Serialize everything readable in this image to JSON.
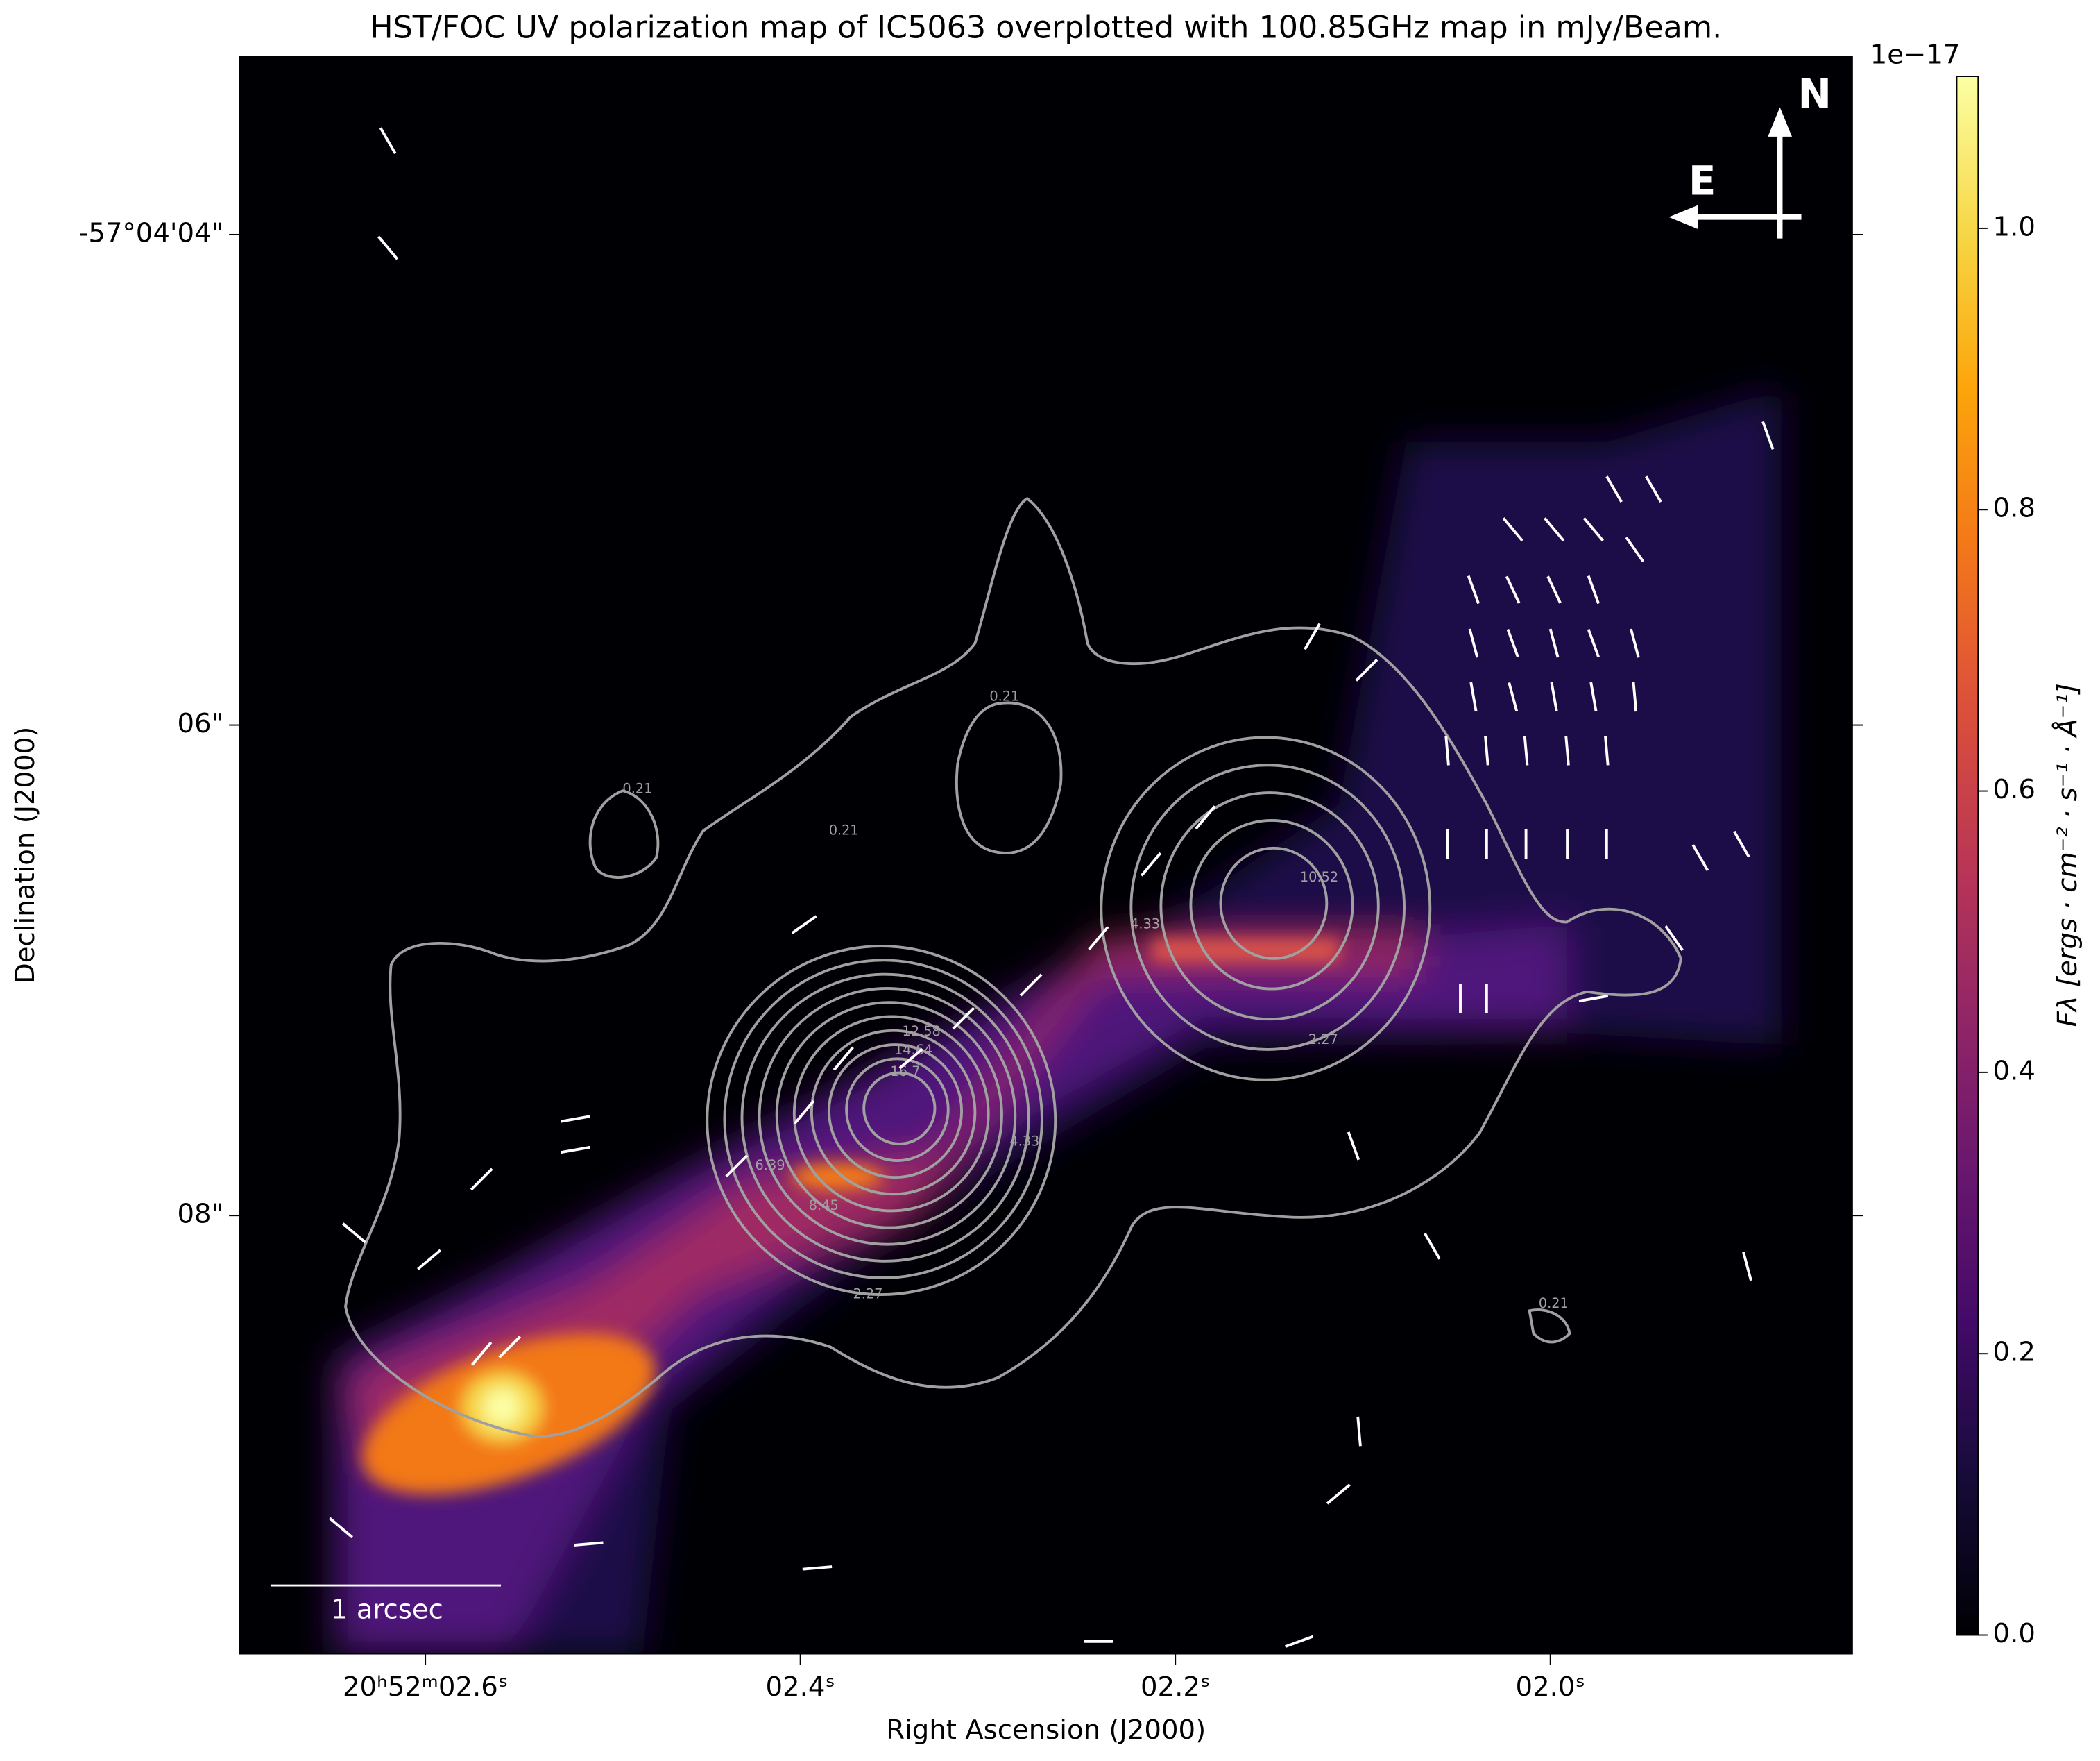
{
  "chart_data": {
    "type": "image",
    "title": "HST/FOC UV polarization map of IC5063 overplotted with 100.85GHz map in mJy/Beam.",
    "xlabel": "Right Ascension (J2000)",
    "ylabel": "Declination (J2000)",
    "xlim": [
      2.699,
      1.839
    ],
    "ylim": [
      9.787,
      3.273
    ],
    "xticks": [
      {
        "value": 2.6,
        "label": "20ʰ52ᵐ02.6ˢ"
      },
      {
        "value": 2.4,
        "label": "02.4ˢ"
      },
      {
        "value": 2.2,
        "label": "02.2ˢ"
      },
      {
        "value": 2.0,
        "label": "02.0ˢ"
      }
    ],
    "yticks": [
      {
        "value": 4,
        "label": "-57°04'04\""
      },
      {
        "value": 6,
        "label": "06\""
      },
      {
        "value": 8,
        "label": "08\""
      }
    ],
    "colorbar": {
      "label": "Fλ [ergs · cm⁻² · s⁻¹ · Å⁻¹]",
      "offset_text": "1e−17",
      "ylim": [
        0,
        1.108
      ],
      "ticks": [
        {
          "value": 0,
          "label": "0.0"
        },
        0.2,
        0.4,
        0.6,
        0.8,
        {
          "value": 1,
          "label": "1.0"
        }
      ]
    },
    "contours": {
      "color": "#a0a0a0",
      "levels": [
        0.21,
        2.27,
        4.33,
        6.39,
        8.45,
        10.52,
        12.58,
        14.64,
        16.7,
        18.76,
        20.82
      ]
    },
    "vectors": {
      "color": "#ffffff",
      "x": [
        2.62,
        2.62,
        1.884,
        1.966,
        1.945,
        2.02,
        1.998,
        1.977,
        1.955,
        2.041,
        2.02,
        1.998,
        1.977,
        2.041,
        2.02,
        1.998,
        1.977,
        1.955,
        2.041,
        2.02,
        1.998,
        1.977,
        1.955,
        2.055,
        2.034,
        2.013,
        1.991,
        1.97,
        2.055,
        2.034,
        2.013,
        1.991,
        1.97,
        1.92,
        1.898,
        1.934,
        2.048,
        2.034,
        1.977,
        2.184,
        2.213,
        2.241,
        2.277,
        2.313,
        2.341,
        2.377,
        2.398,
        2.434,
        2.57,
        2.598,
        2.638,
        2.57,
        2.555,
        2.52,
        2.52,
        2.398,
        2.098,
        2.127,
        2.063,
        1.895,
        2.102,
        2.113,
        2.391,
        2.241,
        2.134,
        2.645,
        2.513,
        2.105
      ],
      "y": [
        3.617,
        4.054,
        4.819,
        5.038,
        5.038,
        5.202,
        5.202,
        5.202,
        5.284,
        5.448,
        5.448,
        5.448,
        5.448,
        5.666,
        5.666,
        5.666,
        5.666,
        5.666,
        5.885,
        5.885,
        5.885,
        5.885,
        5.885,
        6.104,
        6.104,
        6.104,
        6.104,
        6.104,
        6.486,
        6.486,
        6.486,
        6.486,
        6.486,
        6.541,
        6.486,
        6.869,
        7.115,
        7.115,
        7.115,
        6.377,
        6.568,
        6.869,
        7.06,
        7.196,
        7.36,
        7.36,
        7.579,
        7.798,
        7.852,
        8.18,
        8.071,
        8.563,
        8.536,
        7.606,
        7.732,
        6.814,
        5.776,
        5.639,
        8.125,
        8.207,
        8.88,
        9.136,
        9.437,
        9.737,
        9.737,
        9.273,
        9.339,
        7.716
      ],
      "angle": [
        -30,
        -40,
        -20,
        -30,
        -30,
        -40,
        -40,
        -40,
        -35,
        -20,
        -25,
        -25,
        -20,
        -15,
        -20,
        -15,
        -20,
        -15,
        -10,
        -15,
        -10,
        -10,
        -5,
        -5,
        -5,
        -5,
        -5,
        -5,
        0,
        0,
        0,
        0,
        0,
        -30,
        -30,
        -35,
        0,
        0,
        80,
        40,
        40,
        40,
        45,
        45,
        50,
        40,
        40,
        45,
        45,
        50,
        -50,
        40,
        45,
        80,
        80,
        55,
        45,
        30,
        -30,
        -15,
        -5,
        50,
        85,
        90,
        70,
        -50,
        85,
        -20
      ]
    },
    "compass": {
      "north": "N",
      "east": "E"
    },
    "scale_bar_label": "1 arcsec"
  }
}
